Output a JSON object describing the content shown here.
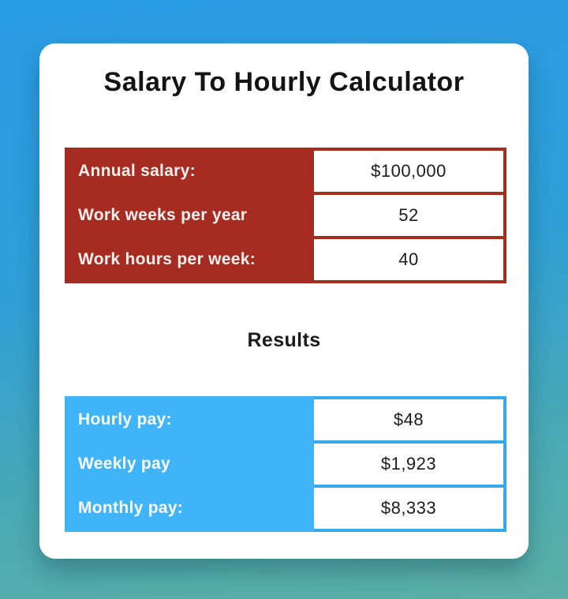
{
  "title": "Salary To Hourly Calculator",
  "results_heading": "Results",
  "input_table": {
    "rows": [
      {
        "label": "Annual salary:",
        "value": "$100,000"
      },
      {
        "label": "Work weeks per year",
        "value": "52"
      },
      {
        "label": "Work hours per week:",
        "value": "40"
      }
    ]
  },
  "results_table": {
    "rows": [
      {
        "label": "Hourly pay:",
        "value": "$48"
      },
      {
        "label": "Weekly pay",
        "value": "$1,923"
      },
      {
        "label": "Monthly pay:",
        "value": "$8,333"
      }
    ]
  },
  "colors": {
    "input_accent": "#a62b21",
    "results_label_bg": "#40b4f8",
    "results_border": "#38a8ec",
    "background_top": "#2a9be6",
    "background_bottom": "#5bb0a7",
    "card_background": "#ffffff"
  }
}
